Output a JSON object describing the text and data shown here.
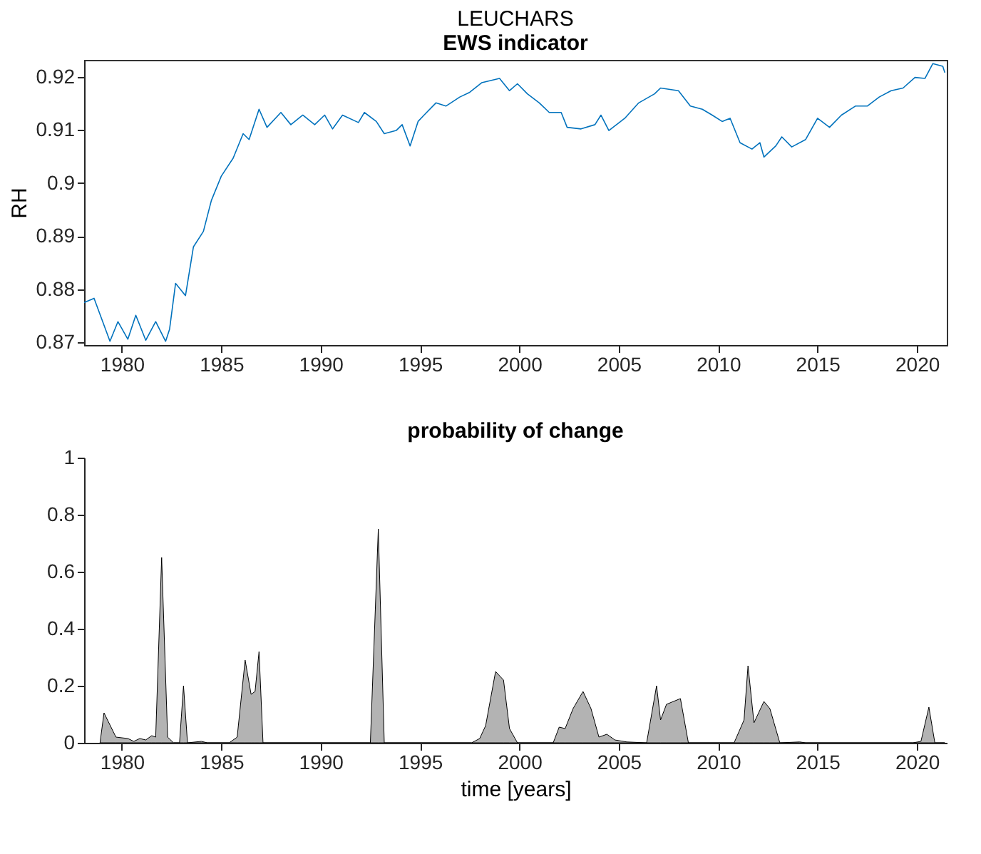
{
  "chart_data": [
    {
      "type": "line",
      "title": "LEUCHARS",
      "subtitle": "EWS indicator",
      "ylabel": "RH",
      "color": "#0072bd",
      "grid": false,
      "x": [
        1978.1,
        1978.6,
        1979.4,
        1979.8,
        1980.3,
        1980.7,
        1981.2,
        1981.7,
        1982.2,
        1982.4,
        1982.7,
        1983.2,
        1983.6,
        1984.1,
        1984.5,
        1985.0,
        1985.6,
        1986.1,
        1986.4,
        1986.9,
        1987.3,
        1988.0,
        1988.5,
        1989.1,
        1989.7,
        1990.2,
        1990.6,
        1991.1,
        1991.9,
        1992.2,
        1992.8,
        1993.2,
        1993.8,
        1994.1,
        1994.5,
        1994.9,
        1995.2,
        1995.8,
        1996.3,
        1997.0,
        1997.5,
        1998.1,
        1999.0,
        1999.5,
        1999.9,
        2000.4,
        2001.0,
        2001.5,
        2002.1,
        2002.4,
        2003.1,
        2003.8,
        2004.1,
        2004.5,
        2005.3,
        2006.0,
        2006.8,
        2007.1,
        2008.0,
        2008.6,
        2009.2,
        2009.7,
        2010.2,
        2010.6,
        2011.1,
        2011.7,
        2012.1,
        2012.3,
        2012.9,
        2013.2,
        2013.7,
        2014.4,
        2015.0,
        2015.6,
        2016.2,
        2016.9,
        2017.5,
        2018.1,
        2018.7,
        2019.3,
        2019.9,
        2020.4,
        2020.8,
        2021.3,
        2021.4
      ],
      "values": [
        0.8775,
        0.8783,
        0.8702,
        0.8739,
        0.8706,
        0.8751,
        0.8704,
        0.8739,
        0.8702,
        0.8725,
        0.8811,
        0.8788,
        0.888,
        0.8909,
        0.8967,
        0.9013,
        0.9047,
        0.9093,
        0.9082,
        0.9139,
        0.9105,
        0.9133,
        0.911,
        0.9128,
        0.911,
        0.9128,
        0.9102,
        0.9128,
        0.9114,
        0.9133,
        0.9116,
        0.9093,
        0.9099,
        0.911,
        0.907,
        0.9116,
        0.9128,
        0.9151,
        0.9145,
        0.9162,
        0.9171,
        0.9189,
        0.9197,
        0.9174,
        0.9187,
        0.9168,
        0.9151,
        0.9133,
        0.9133,
        0.9105,
        0.9102,
        0.911,
        0.9128,
        0.9099,
        0.9122,
        0.9151,
        0.9168,
        0.9179,
        0.9174,
        0.9145,
        0.9139,
        0.9128,
        0.9116,
        0.9122,
        0.9076,
        0.9064,
        0.9076,
        0.9049,
        0.907,
        0.9087,
        0.9068,
        0.9082,
        0.9122,
        0.9105,
        0.9128,
        0.9145,
        0.9145,
        0.9162,
        0.9174,
        0.9179,
        0.9199,
        0.9197,
        0.9225,
        0.922,
        0.9208
      ],
      "xlim": [
        1978.1,
        2021.5
      ],
      "ylim": [
        0.8695,
        0.9232
      ],
      "xticks": [
        1980,
        1985,
        1990,
        1995,
        2000,
        2005,
        2010,
        2015,
        2020
      ],
      "yticks": [
        0.87,
        0.88,
        0.89,
        0.9,
        0.91,
        0.92
      ]
    },
    {
      "type": "area",
      "title": "probability of change",
      "xlabel": "time [years]",
      "color": "#b3b3b3",
      "grid": false,
      "x": [
        1978.9,
        1979.1,
        1979.7,
        1980.3,
        1980.6,
        1980.9,
        1981.2,
        1981.5,
        1981.7,
        1982.0,
        1982.3,
        1982.6,
        1982.9,
        1983.1,
        1983.3,
        1984.0,
        1984.3,
        1985.4,
        1985.8,
        1986.2,
        1986.5,
        1986.7,
        1986.9,
        1987.1,
        1992.5,
        1992.9,
        1993.2,
        1997.6,
        1998.0,
        1998.3,
        1998.8,
        1999.2,
        1999.5,
        1999.9,
        2001.7,
        2002.0,
        2002.3,
        2002.7,
        2003.2,
        2003.6,
        2004.0,
        2004.4,
        2004.8,
        2005.4,
        2006.4,
        2006.9,
        2007.1,
        2007.4,
        2008.1,
        2008.5,
        2010.8,
        2011.3,
        2011.5,
        2011.8,
        2012.3,
        2012.6,
        2013.1,
        2014.1,
        2014.4,
        2019.8,
        2020.2,
        2020.6,
        2020.9,
        2021.4
      ],
      "values": [
        0,
        0.105,
        0.02,
        0.015,
        0.005,
        0.015,
        0.01,
        0.025,
        0.02,
        0.65,
        0.02,
        0,
        0,
        0.2,
        0,
        0.005,
        0,
        0,
        0.02,
        0.29,
        0.17,
        0.18,
        0.32,
        0,
        0,
        0.75,
        0,
        0,
        0.015,
        0.06,
        0.25,
        0.22,
        0.05,
        0,
        0,
        0.055,
        0.05,
        0.12,
        0.18,
        0.12,
        0.02,
        0.03,
        0.01,
        0.003,
        0,
        0.2,
        0.08,
        0.135,
        0.155,
        0,
        0,
        0.08,
        0.27,
        0.07,
        0.145,
        0.12,
        0,
        0.003,
        0,
        0,
        0.005,
        0.125,
        0,
        0
      ],
      "xlim": [
        1978.1,
        2021.5
      ],
      "ylim": [
        0,
        1
      ],
      "xticks": [
        1980,
        1985,
        1990,
        1995,
        2000,
        2005,
        2010,
        2015,
        2020
      ],
      "yticks": [
        0,
        0.2,
        0.4,
        0.6,
        0.8,
        1
      ]
    }
  ]
}
